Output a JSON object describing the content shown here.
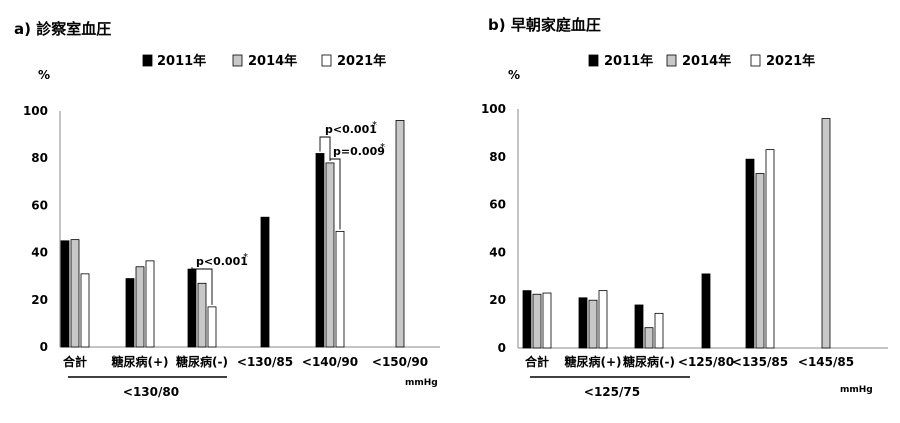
{
  "chart_data": [
    {
      "type": "bar",
      "title": "a) 診察室血圧",
      "ylabel": "%",
      "unit": "mmHg",
      "ylim": [
        0,
        100
      ],
      "yticks": [
        0,
        20,
        40,
        60,
        80,
        100
      ],
      "grid": false,
      "legend_position": "top",
      "categories": [
        "合計",
        "糖尿病(+)",
        "糖尿病(-)",
        "<130/85",
        "<140/90",
        "<150/90"
      ],
      "group_label": "<130/80",
      "series": [
        {
          "name": "2011年",
          "color": "#000000",
          "values": [
            45,
            29,
            33,
            55,
            82,
            null
          ]
        },
        {
          "name": "2014年",
          "color": "#c8c8c8",
          "values": [
            45.5,
            34,
            27,
            null,
            78,
            96
          ]
        },
        {
          "name": "2021年",
          "color": "#ffffff",
          "values": [
            31,
            36.5,
            17,
            null,
            49,
            null
          ]
        }
      ],
      "annotations": [
        {
          "text": "p<0.001",
          "mark": "*"
        },
        {
          "text": "p<0.001",
          "mark": "*"
        },
        {
          "text": "p=0.009",
          "mark": "*"
        }
      ]
    },
    {
      "type": "bar",
      "title": "b) 早朝家庭血圧",
      "ylabel": "%",
      "unit": "mmHg",
      "ylim": [
        0,
        100
      ],
      "yticks": [
        0,
        20,
        40,
        60,
        80,
        100
      ],
      "grid": false,
      "legend_position": "top",
      "categories": [
        "合計",
        "糖尿病(+)",
        "糖尿病(-)",
        "<125/80",
        "<135/85",
        "<145/85"
      ],
      "group_label": "<125/75",
      "series": [
        {
          "name": "2011年",
          "color": "#000000",
          "values": [
            24,
            21,
            18,
            31,
            79,
            null
          ]
        },
        {
          "name": "2014年",
          "color": "#c8c8c8",
          "values": [
            22.5,
            20,
            8.5,
            null,
            73,
            96
          ]
        },
        {
          "name": "2021年",
          "color": "#ffffff",
          "values": [
            23,
            24,
            14.5,
            null,
            83,
            null
          ]
        }
      ],
      "annotations": []
    }
  ]
}
